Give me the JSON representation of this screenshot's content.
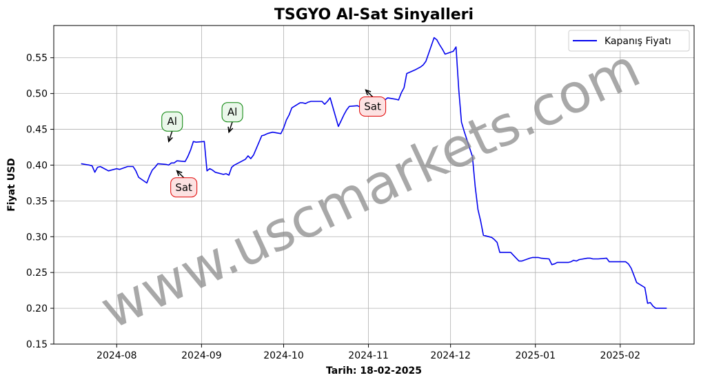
{
  "chart_data": {
    "type": "line",
    "title": "TSGYO Al-Sat Sinyalleri",
    "xlabel": "Tarih: 18-02-2025",
    "ylabel": "Fiyat USD",
    "grid": true,
    "legend_position": "top-right",
    "xlim": [
      "2024-07-09",
      "2025-02-28"
    ],
    "ylim": [
      0.15,
      0.595
    ],
    "x_ticks": [
      "2024-08",
      "2024-09",
      "2024-10",
      "2024-11",
      "2024-12",
      "2025-01",
      "2025-02"
    ],
    "x_tick_dates": [
      "2024-08-01",
      "2024-09-01",
      "2024-10-01",
      "2024-11-01",
      "2024-12-01",
      "2025-01-01",
      "2025-02-01"
    ],
    "y_ticks": [
      0.15,
      0.2,
      0.25,
      0.3,
      0.35,
      0.4,
      0.45,
      0.5,
      0.55
    ],
    "y_tick_labels": [
      "0.15",
      "0.20",
      "0.25",
      "0.30",
      "0.35",
      "0.40",
      "0.45",
      "0.50",
      "0.55"
    ],
    "series": [
      {
        "name": "Kapanış Fiyatı",
        "color": "#0000ee",
        "points": [
          [
            "2024-07-19",
            0.402
          ],
          [
            "2024-07-22",
            0.4
          ],
          [
            "2024-07-23",
            0.399
          ],
          [
            "2024-07-24",
            0.39
          ],
          [
            "2024-07-25",
            0.397
          ],
          [
            "2024-07-26",
            0.398
          ],
          [
            "2024-07-29",
            0.392
          ],
          [
            "2024-07-30",
            0.393
          ],
          [
            "2024-07-31",
            0.394
          ],
          [
            "2024-08-01",
            0.395
          ],
          [
            "2024-08-02",
            0.394
          ],
          [
            "2024-08-05",
            0.398
          ],
          [
            "2024-08-06",
            0.398
          ],
          [
            "2024-08-07",
            0.398
          ],
          [
            "2024-08-08",
            0.392
          ],
          [
            "2024-08-09",
            0.383
          ],
          [
            "2024-08-12",
            0.375
          ],
          [
            "2024-08-13",
            0.385
          ],
          [
            "2024-08-14",
            0.393
          ],
          [
            "2024-08-15",
            0.397
          ],
          [
            "2024-08-16",
            0.402
          ],
          [
            "2024-08-19",
            0.401
          ],
          [
            "2024-08-20",
            0.4
          ],
          [
            "2024-08-21",
            0.403
          ],
          [
            "2024-08-22",
            0.403
          ],
          [
            "2024-08-23",
            0.406
          ],
          [
            "2024-08-26",
            0.405
          ],
          [
            "2024-08-27",
            0.412
          ],
          [
            "2024-08-28",
            0.421
          ],
          [
            "2024-08-29",
            0.433
          ],
          [
            "2024-08-30",
            0.432
          ],
          [
            "2024-09-02",
            0.433
          ],
          [
            "2024-09-03",
            0.392
          ],
          [
            "2024-09-04",
            0.395
          ],
          [
            "2024-09-05",
            0.393
          ],
          [
            "2024-09-06",
            0.39
          ],
          [
            "2024-09-09",
            0.387
          ],
          [
            "2024-09-10",
            0.388
          ],
          [
            "2024-09-11",
            0.386
          ],
          [
            "2024-09-12",
            0.397
          ],
          [
            "2024-09-13",
            0.4
          ],
          [
            "2024-09-16",
            0.406
          ],
          [
            "2024-09-17",
            0.408
          ],
          [
            "2024-09-18",
            0.413
          ],
          [
            "2024-09-19",
            0.409
          ],
          [
            "2024-09-20",
            0.414
          ],
          [
            "2024-09-23",
            0.441
          ],
          [
            "2024-09-24",
            0.442
          ],
          [
            "2024-09-25",
            0.444
          ],
          [
            "2024-09-26",
            0.445
          ],
          [
            "2024-09-27",
            0.446
          ],
          [
            "2024-09-30",
            0.444
          ],
          [
            "2024-10-01",
            0.452
          ],
          [
            "2024-10-02",
            0.463
          ],
          [
            "2024-10-03",
            0.47
          ],
          [
            "2024-10-04",
            0.48
          ],
          [
            "2024-10-07",
            0.487
          ],
          [
            "2024-10-08",
            0.487
          ],
          [
            "2024-10-09",
            0.486
          ],
          [
            "2024-10-10",
            0.488
          ],
          [
            "2024-10-11",
            0.489
          ],
          [
            "2024-10-14",
            0.489
          ],
          [
            "2024-10-15",
            0.489
          ],
          [
            "2024-10-16",
            0.485
          ],
          [
            "2024-10-17",
            0.489
          ],
          [
            "2024-10-18",
            0.494
          ],
          [
            "2024-10-21",
            0.454
          ],
          [
            "2024-10-22",
            0.462
          ],
          [
            "2024-10-23",
            0.47
          ],
          [
            "2024-10-24",
            0.477
          ],
          [
            "2024-10-25",
            0.482
          ],
          [
            "2024-10-28",
            0.483
          ],
          [
            "2024-10-29",
            0.481
          ],
          [
            "2024-10-30",
            0.488
          ],
          [
            "2024-10-31",
            0.485
          ],
          [
            "2024-11-01",
            0.482
          ],
          [
            "2024-11-04",
            0.478
          ],
          [
            "2024-11-05",
            0.489
          ],
          [
            "2024-11-06",
            0.489
          ],
          [
            "2024-11-07",
            0.491
          ],
          [
            "2024-11-08",
            0.494
          ],
          [
            "2024-11-11",
            0.492
          ],
          [
            "2024-11-12",
            0.491
          ],
          [
            "2024-11-13",
            0.501
          ],
          [
            "2024-11-14",
            0.508
          ],
          [
            "2024-11-15",
            0.528
          ],
          [
            "2024-11-18",
            0.533
          ],
          [
            "2024-11-19",
            0.535
          ],
          [
            "2024-11-20",
            0.537
          ],
          [
            "2024-11-21",
            0.54
          ],
          [
            "2024-11-22",
            0.545
          ],
          [
            "2024-11-25",
            0.578
          ],
          [
            "2024-11-26",
            0.575
          ],
          [
            "2024-11-27",
            0.568
          ],
          [
            "2024-11-28",
            0.562
          ],
          [
            "2024-11-29",
            0.555
          ],
          [
            "2024-12-02",
            0.559
          ],
          [
            "2024-12-03",
            0.565
          ],
          [
            "2024-12-04",
            0.505
          ],
          [
            "2024-12-05",
            0.46
          ],
          [
            "2024-12-06",
            0.447
          ],
          [
            "2024-12-09",
            0.412
          ],
          [
            "2024-12-10",
            0.37
          ],
          [
            "2024-12-11",
            0.338
          ],
          [
            "2024-12-12",
            0.322
          ],
          [
            "2024-12-13",
            0.302
          ],
          [
            "2024-12-16",
            0.299
          ],
          [
            "2024-12-17",
            0.296
          ],
          [
            "2024-12-18",
            0.292
          ],
          [
            "2024-12-19",
            0.278
          ],
          [
            "2024-12-20",
            0.278
          ],
          [
            "2024-12-23",
            0.278
          ],
          [
            "2024-12-24",
            0.274
          ],
          [
            "2024-12-25",
            0.27
          ],
          [
            "2024-12-26",
            0.266
          ],
          [
            "2024-12-27",
            0.266
          ],
          [
            "2024-12-30",
            0.27
          ],
          [
            "2024-12-31",
            0.271
          ],
          [
            "2025-01-02",
            0.271
          ],
          [
            "2025-01-03",
            0.27
          ],
          [
            "2025-01-06",
            0.269
          ],
          [
            "2025-01-07",
            0.261
          ],
          [
            "2025-01-08",
            0.262
          ],
          [
            "2025-01-09",
            0.264
          ],
          [
            "2025-01-10",
            0.264
          ],
          [
            "2025-01-13",
            0.264
          ],
          [
            "2025-01-14",
            0.265
          ],
          [
            "2025-01-15",
            0.267
          ],
          [
            "2025-01-16",
            0.266
          ],
          [
            "2025-01-17",
            0.268
          ],
          [
            "2025-01-20",
            0.27
          ],
          [
            "2025-01-21",
            0.27
          ],
          [
            "2025-01-22",
            0.269
          ],
          [
            "2025-01-23",
            0.269
          ],
          [
            "2025-01-24",
            0.269
          ],
          [
            "2025-01-27",
            0.27
          ],
          [
            "2025-01-28",
            0.265
          ],
          [
            "2025-01-29",
            0.265
          ],
          [
            "2025-01-30",
            0.265
          ],
          [
            "2025-01-31",
            0.265
          ],
          [
            "2025-02-03",
            0.265
          ],
          [
            "2025-02-04",
            0.262
          ],
          [
            "2025-02-05",
            0.256
          ],
          [
            "2025-02-06",
            0.246
          ],
          [
            "2025-02-07",
            0.236
          ],
          [
            "2025-02-10",
            0.229
          ],
          [
            "2025-02-11",
            0.207
          ],
          [
            "2025-02-12",
            0.208
          ],
          [
            "2025-02-13",
            0.203
          ],
          [
            "2025-02-14",
            0.2
          ],
          [
            "2025-02-17",
            0.2
          ],
          [
            "2025-02-18",
            0.2
          ]
        ]
      }
    ],
    "signals": [
      {
        "label": "Al",
        "type": "buy",
        "date": "2024-08-20",
        "price": 0.433
      },
      {
        "label": "Sat",
        "type": "sell",
        "date": "2024-08-23",
        "price": 0.392
      },
      {
        "label": "Al",
        "type": "buy",
        "date": "2024-09-11",
        "price": 0.446
      },
      {
        "label": "Sat",
        "type": "sell",
        "date": "2024-10-31",
        "price": 0.505
      }
    ],
    "signal_colors": {
      "buy_edge": "#008000",
      "buy_fill": "#eaf7ea",
      "sell_edge": "#e00000",
      "sell_fill": "#fde2e2"
    },
    "watermark": "www.uscmarkets.com"
  }
}
